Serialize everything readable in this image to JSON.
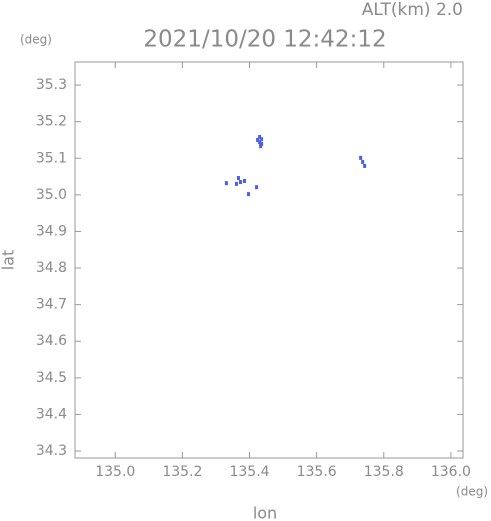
{
  "chart_data": {
    "type": "scatter",
    "title": "2021/10/20 12:42:12",
    "subtitle": "ALT(km) 2.0",
    "y_unit": "(deg)",
    "x_unit": "(deg)",
    "x_label": "lon",
    "y_label": "lat",
    "color": "#4a5ee8",
    "xlim": [
      134.88,
      136.036
    ],
    "ylim": [
      34.281,
      35.363
    ],
    "xticks": [
      {
        "value": 135.0,
        "label": "135.0"
      },
      135.2,
      135.4,
      135.6,
      135.8,
      {
        "value": 136.0,
        "label": "136.0"
      }
    ],
    "yticks": [
      34.3,
      34.4,
      34.5,
      34.6,
      34.7,
      34.8,
      34.9,
      {
        "value": 35.0,
        "label": "35.0"
      },
      35.1,
      35.2,
      35.3
    ],
    "x": [
      135.424,
      135.43,
      135.433,
      135.436,
      135.43,
      135.436,
      135.731,
      135.737,
      135.743,
      135.331,
      135.367,
      135.373,
      135.361,
      135.385,
      135.397,
      135.421
    ],
    "y": [
      35.15,
      35.144,
      35.133,
      35.152,
      35.158,
      35.139,
      35.101,
      35.09,
      35.079,
      35.032,
      35.046,
      35.035,
      35.03,
      35.038,
      35.002,
      35.021
    ]
  }
}
